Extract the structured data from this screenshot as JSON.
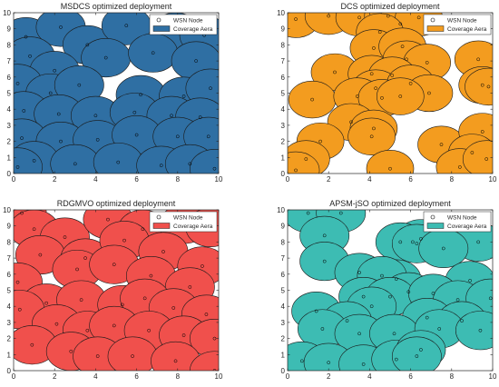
{
  "chart_data": [
    {
      "type": "scatter",
      "title": "MSDCS optimized deployment",
      "xlim": [
        0,
        10
      ],
      "ylim": [
        0,
        10
      ],
      "xticks": [
        "0",
        "2",
        "4",
        "6",
        "8",
        "10"
      ],
      "yticks": [
        "0",
        "1",
        "2",
        "3",
        "4",
        "5",
        "6",
        "7",
        "8",
        "9",
        "10"
      ],
      "legend": [
        "WSN Node",
        "Coverage Aera"
      ],
      "legend_position": "top-right",
      "color": "#2f6fa3",
      "radius": 1.2,
      "nodes": [
        [
          0.6,
          8.5
        ],
        [
          2.3,
          9.1
        ],
        [
          3.6,
          8.0
        ],
        [
          5.5,
          9.2
        ],
        [
          7.9,
          8.8
        ],
        [
          9.3,
          8.6
        ],
        [
          0.8,
          7.3
        ],
        [
          2.0,
          6.4
        ],
        [
          4.5,
          7.2
        ],
        [
          6.8,
          7.5
        ],
        [
          8.9,
          7.0
        ],
        [
          0.2,
          5.6
        ],
        [
          1.8,
          5.0
        ],
        [
          3.2,
          5.5
        ],
        [
          6.2,
          4.9
        ],
        [
          8.3,
          4.8
        ],
        [
          9.6,
          5.3
        ],
        [
          0.5,
          3.9
        ],
        [
          2.2,
          3.7
        ],
        [
          4.0,
          3.6
        ],
        [
          5.9,
          3.8
        ],
        [
          7.7,
          3.6
        ],
        [
          9.1,
          3.5
        ],
        [
          0.4,
          2.2
        ],
        [
          2.3,
          2.0
        ],
        [
          4.1,
          2.1
        ],
        [
          6.0,
          2.4
        ],
        [
          8.0,
          2.3
        ],
        [
          9.5,
          2.3
        ],
        [
          1.0,
          0.8
        ],
        [
          3.0,
          0.6
        ],
        [
          5.1,
          0.7
        ],
        [
          7.2,
          0.5
        ],
        [
          8.6,
          0.6
        ],
        [
          9.8,
          0.3
        ],
        [
          0.2,
          0.4
        ]
      ]
    },
    {
      "type": "scatter",
      "title": "DCS optimized deployment",
      "xlim": [
        0,
        10
      ],
      "ylim": [
        0,
        10
      ],
      "xticks": [
        "0",
        "2",
        "4",
        "6",
        "8",
        "10"
      ],
      "yticks": [
        "0",
        "1",
        "2",
        "3",
        "4",
        "5",
        "6",
        "7",
        "8",
        "9",
        "10"
      ],
      "legend": [
        "WSN Node",
        "Coverage Aera"
      ],
      "legend_position": "top-right",
      "color": "#f39c1f",
      "radius": 1.15,
      "nodes": [
        [
          0.4,
          9.6
        ],
        [
          2.0,
          9.8
        ],
        [
          3.5,
          9.7
        ],
        [
          4.9,
          9.8
        ],
        [
          5.5,
          9.3
        ],
        [
          6.4,
          9.7
        ],
        [
          4.5,
          8.8
        ],
        [
          4.2,
          7.8
        ],
        [
          5.6,
          7.9
        ],
        [
          5.8,
          7.1
        ],
        [
          6.8,
          6.9
        ],
        [
          9.3,
          7.1
        ],
        [
          2.3,
          6.3
        ],
        [
          4.1,
          6.2
        ],
        [
          5.1,
          6.1
        ],
        [
          4.3,
          5.3
        ],
        [
          6.0,
          5.6
        ],
        [
          6.9,
          5.0
        ],
        [
          9.5,
          5.5
        ],
        [
          9.8,
          5.4
        ],
        [
          1.2,
          4.6
        ],
        [
          3.4,
          4.8
        ],
        [
          4.6,
          4.7
        ],
        [
          5.5,
          4.8
        ],
        [
          3.1,
          3.2
        ],
        [
          4.2,
          2.8
        ],
        [
          4.1,
          2.3
        ],
        [
          1.6,
          2.0
        ],
        [
          7.5,
          1.8
        ],
        [
          9.5,
          2.6
        ],
        [
          9.0,
          1.3
        ],
        [
          0.9,
          0.9
        ],
        [
          0.4,
          0.2
        ],
        [
          5.0,
          0.3
        ],
        [
          8.4,
          0.4
        ],
        [
          9.7,
          0.9
        ]
      ]
    },
    {
      "type": "scatter",
      "title": "RDGMVO optimized deployment",
      "xlim": [
        0,
        10
      ],
      "ylim": [
        0,
        10
      ],
      "xticks": [
        "0",
        "2",
        "4",
        "6",
        "8",
        "10"
      ],
      "yticks": [
        "0",
        "1",
        "2",
        "3",
        "4",
        "5",
        "6",
        "7",
        "8",
        "9",
        "10"
      ],
      "legend": [
        "WSN Node",
        "Coverage Aera"
      ],
      "legend_position": "top-right",
      "color": "#f0504c",
      "radius": 1.2,
      "nodes": [
        [
          0.4,
          9.8
        ],
        [
          1.0,
          8.8
        ],
        [
          2.5,
          8.3
        ],
        [
          4.6,
          9.4
        ],
        [
          6.3,
          8.8
        ],
        [
          8.3,
          9.1
        ],
        [
          9.6,
          8.9
        ],
        [
          1.3,
          7.2
        ],
        [
          3.5,
          7.0
        ],
        [
          5.4,
          8.1
        ],
        [
          7.3,
          7.4
        ],
        [
          9.2,
          6.5
        ],
        [
          0.2,
          5.5
        ],
        [
          3.1,
          6.3
        ],
        [
          4.9,
          6.6
        ],
        [
          6.7,
          5.9
        ],
        [
          8.6,
          5.2
        ],
        [
          1.6,
          4.2
        ],
        [
          3.3,
          4.4
        ],
        [
          5.3,
          4.1
        ],
        [
          6.4,
          4.5
        ],
        [
          7.8,
          3.9
        ],
        [
          9.4,
          3.5
        ],
        [
          0.3,
          3.8
        ],
        [
          2.1,
          2.9
        ],
        [
          3.6,
          2.5
        ],
        [
          4.9,
          2.8
        ],
        [
          6.6,
          2.5
        ],
        [
          8.3,
          2.2
        ],
        [
          9.8,
          2.0
        ],
        [
          0.9,
          1.6
        ],
        [
          2.8,
          1.2
        ],
        [
          4.1,
          0.9
        ],
        [
          5.8,
          0.9
        ],
        [
          7.9,
          0.6
        ],
        [
          9.8,
          0.0
        ]
      ]
    },
    {
      "type": "scatter",
      "title": "APSM-jSO optimized deployment",
      "xlim": [
        0,
        10
      ],
      "ylim": [
        0,
        10
      ],
      "xticks": [
        "0",
        "2",
        "4",
        "6",
        "8",
        "10"
      ],
      "yticks": [
        "0",
        "1",
        "2",
        "3",
        "4",
        "5",
        "6",
        "7",
        "8",
        "9",
        "10"
      ],
      "legend": [
        "WSN Node",
        "Coverage Aera"
      ],
      "legend_position": "top-right",
      "color": "#3dbcb3",
      "radius": 1.2,
      "nodes": [
        [
          1.0,
          9.8
        ],
        [
          2.6,
          9.8
        ],
        [
          1.8,
          8.4
        ],
        [
          6.1,
          8.0
        ],
        [
          6.5,
          8.2
        ],
        [
          5.5,
          8.0
        ],
        [
          6.3,
          7.9
        ],
        [
          9.3,
          8.0
        ],
        [
          7.6,
          7.6
        ],
        [
          1.8,
          6.8
        ],
        [
          3.5,
          6.1
        ],
        [
          5.3,
          5.7
        ],
        [
          4.6,
          5.9
        ],
        [
          8.9,
          5.6
        ],
        [
          5.9,
          4.9
        ],
        [
          3.7,
          4.6
        ],
        [
          5.0,
          4.6
        ],
        [
          7.1,
          4.8
        ],
        [
          8.3,
          4.4
        ],
        [
          9.9,
          4.5
        ],
        [
          4.1,
          4.0
        ],
        [
          1.4,
          3.7
        ],
        [
          2.9,
          3.1
        ],
        [
          6.8,
          3.3
        ],
        [
          8.5,
          3.1
        ],
        [
          1.7,
          2.6
        ],
        [
          3.5,
          2.3
        ],
        [
          5.2,
          2.3
        ],
        [
          7.4,
          2.6
        ],
        [
          9.4,
          2.5
        ],
        [
          0.7,
          0.6
        ],
        [
          2.0,
          0.5
        ],
        [
          3.7,
          0.4
        ],
        [
          5.3,
          0.7
        ],
        [
          6.5,
          1.3
        ],
        [
          6.3,
          0.9
        ]
      ]
    }
  ]
}
